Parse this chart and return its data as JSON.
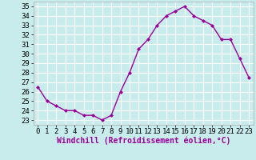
{
  "x": [
    0,
    1,
    2,
    3,
    4,
    5,
    6,
    7,
    8,
    9,
    10,
    11,
    12,
    13,
    14,
    15,
    16,
    17,
    18,
    19,
    20,
    21,
    22,
    23
  ],
  "y": [
    26.5,
    25.0,
    24.5,
    24.0,
    24.0,
    23.5,
    23.5,
    23.0,
    23.5,
    26.0,
    28.0,
    30.5,
    31.5,
    33.0,
    34.0,
    34.5,
    35.0,
    34.0,
    33.5,
    33.0,
    31.5,
    31.5,
    29.5,
    27.5
  ],
  "line_color": "#990099",
  "marker": "D",
  "marker_size": 2,
  "xlabel": "Windchill (Refroidissement éolien,°C)",
  "xlabel_fontsize": 7,
  "ylabel_ticks": [
    23,
    24,
    25,
    26,
    27,
    28,
    29,
    30,
    31,
    32,
    33,
    34,
    35
  ],
  "xticks": [
    0,
    1,
    2,
    3,
    4,
    5,
    6,
    7,
    8,
    9,
    10,
    11,
    12,
    13,
    14,
    15,
    16,
    17,
    18,
    19,
    20,
    21,
    22,
    23
  ],
  "ylim": [
    22.5,
    35.5
  ],
  "xlim": [
    -0.5,
    23.5
  ],
  "bg_color": "#c8ecec",
  "grid_color": "#ffffff",
  "tick_fontsize": 6.5,
  "linewidth": 1.0,
  "spine_color": "#aaaaaa"
}
